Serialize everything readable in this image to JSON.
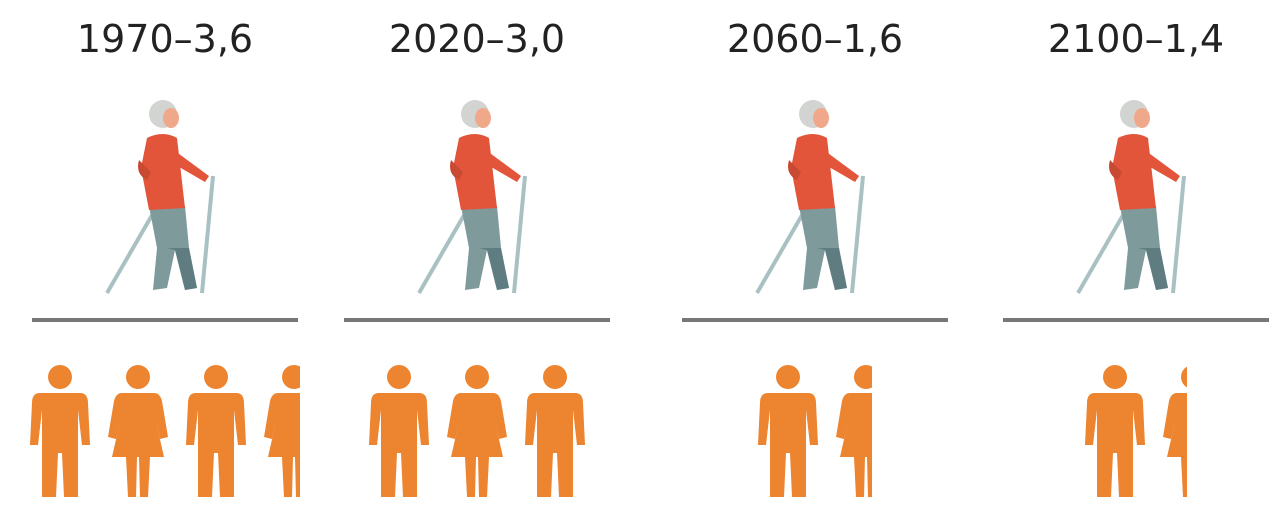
{
  "chart_data": {
    "type": "pictogram",
    "categories": [
      "1970",
      "2020",
      "2060",
      "2100"
    ],
    "label_separator": "–",
    "values": [
      3.6,
      3.0,
      1.6,
      1.4
    ],
    "value_labels": [
      "3,6",
      "3,0",
      "1,6",
      "1,4"
    ],
    "color": "#ec8430"
  }
}
